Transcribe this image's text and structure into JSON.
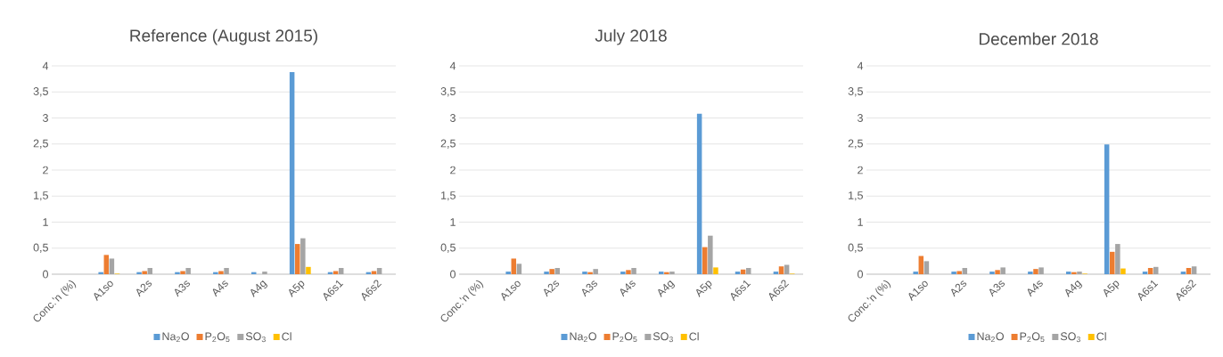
{
  "chart_data": [
    {
      "type": "bar",
      "title": "Reference (August 2015)",
      "categories": [
        "Conc.'n (%)",
        "A1so",
        "A2s",
        "A3s",
        "A4s",
        "A4g",
        "A5p",
        "A6s1",
        "A6s2"
      ],
      "ylim": [
        0,
        4
      ],
      "yticks": [
        0,
        {
          "value": 0.5,
          "label": "0,5"
        },
        1,
        {
          "value": 1.5,
          "label": "1,5"
        },
        2,
        {
          "value": 2.5,
          "label": "2,5"
        },
        3,
        {
          "value": 3.5,
          "label": "3,5"
        },
        4
      ],
      "grid": "y",
      "legend": "bottom",
      "series": [
        {
          "name": "Na$_{2}$O",
          "color": "#5b9bd5",
          "values": [
            null,
            0.04,
            0.04,
            0.04,
            0.04,
            0.04,
            3.88,
            0.04,
            0.04
          ]
        },
        {
          "name": "P$_{2}$O$_{5}$",
          "color": "#ed7d31",
          "values": [
            null,
            0.37,
            0.06,
            0.06,
            0.06,
            0,
            0.58,
            0.06,
            0.06
          ]
        },
        {
          "name": "SO$_{3}$",
          "color": "#a5a5a5",
          "values": [
            null,
            0.3,
            0.12,
            0.12,
            0.12,
            0.05,
            0.69,
            0.12,
            0.12
          ]
        },
        {
          "name": "Cl",
          "color": "#ffc000",
          "values": [
            null,
            0.01,
            0,
            0,
            0,
            0,
            0.14,
            0,
            0
          ]
        }
      ]
    },
    {
      "type": "bar",
      "title": "July 2018",
      "categories": [
        "Conc.'n (%)",
        "A1so",
        "A2s",
        "A3s",
        "A4s",
        "A4g",
        "A5p",
        "A6s1",
        "A6s2"
      ],
      "ylim": [
        0,
        4
      ],
      "yticks": [
        0,
        {
          "value": 0.5,
          "label": "0,5"
        },
        1,
        {
          "value": 1.5,
          "label": "1,5"
        },
        2,
        {
          "value": 2.5,
          "label": "2,5"
        },
        3,
        {
          "value": 3.5,
          "label": "3,5"
        },
        4
      ],
      "grid": "y",
      "legend": "bottom",
      "series": [
        {
          "name": "Na$_{2}$O",
          "color": "#5b9bd5",
          "values": [
            null,
            0.05,
            0.05,
            0.05,
            0.05,
            0.05,
            3.08,
            0.05,
            0.05
          ]
        },
        {
          "name": "P$_{2}$O$_{5}$",
          "color": "#ed7d31",
          "values": [
            null,
            0.3,
            0.1,
            0.04,
            0.08,
            0.04,
            0.52,
            0.09,
            0.15
          ]
        },
        {
          "name": "SO$_{3}$",
          "color": "#a5a5a5",
          "values": [
            null,
            0.2,
            0.12,
            0.1,
            0.12,
            0.05,
            0.74,
            0.12,
            0.18
          ]
        },
        {
          "name": "Cl",
          "color": "#ffc000",
          "values": [
            null,
            0,
            0,
            0,
            0,
            0,
            0.13,
            0,
            0.01
          ]
        }
      ]
    },
    {
      "type": "bar",
      "title": "December 2018",
      "categories": [
        "Conc.'n (%)",
        "A1so",
        "A2s",
        "A3s",
        "A4s",
        "A4g",
        "A5p",
        "A6s1",
        "A6s2"
      ],
      "ylim": [
        0,
        4
      ],
      "yticks": [
        0,
        {
          "value": 0.5,
          "label": "0,5"
        },
        1,
        {
          "value": 1.5,
          "label": "1,5"
        },
        2,
        {
          "value": 2.5,
          "label": "2,5"
        },
        3,
        {
          "value": 3.5,
          "label": "3,5"
        },
        4
      ],
      "grid": "y",
      "legend": "bottom",
      "series": [
        {
          "name": "Na$_{2}$O",
          "color": "#5b9bd5",
          "values": [
            null,
            0.05,
            0.05,
            0.05,
            0.05,
            0.05,
            2.49,
            0.05,
            0.05
          ]
        },
        {
          "name": "P$_{2}$O$_{5}$",
          "color": "#ed7d31",
          "values": [
            null,
            0.35,
            0.06,
            0.08,
            0.1,
            0.04,
            0.43,
            0.12,
            0.12
          ]
        },
        {
          "name": "SO$_{3}$",
          "color": "#a5a5a5",
          "values": [
            null,
            0.25,
            0.12,
            0.13,
            0.13,
            0.05,
            0.58,
            0.14,
            0.15
          ]
        },
        {
          "name": "Cl",
          "color": "#ffc000",
          "values": [
            null,
            0,
            0,
            0,
            0,
            0.01,
            0.11,
            0,
            0
          ]
        }
      ]
    }
  ]
}
